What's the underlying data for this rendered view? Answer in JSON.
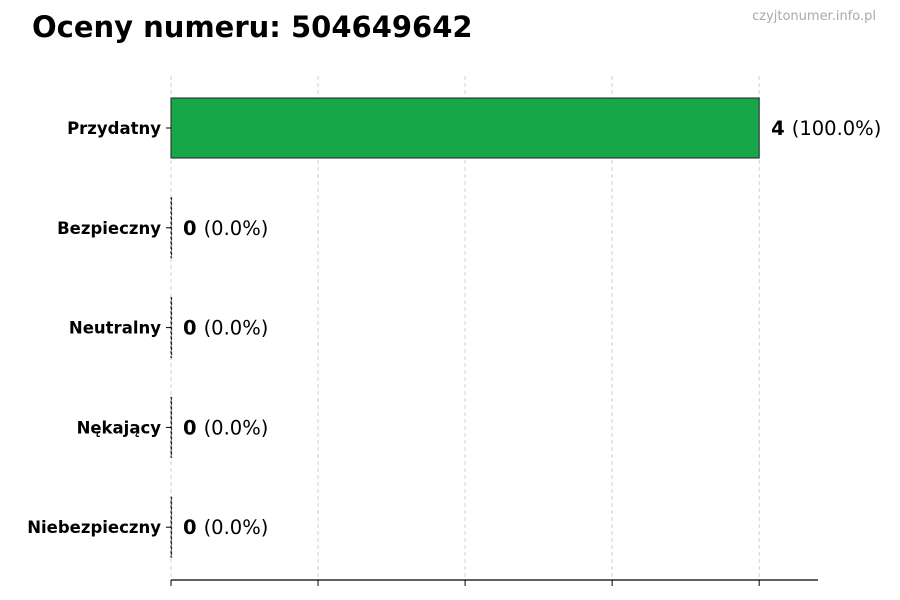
{
  "chart_data": {
    "type": "bar",
    "orientation": "horizontal",
    "title": "Oceny numeru: 504649642",
    "watermark": "czyjtonumer.info.pl",
    "categories": [
      "Przydatny",
      "Bezpieczny",
      "Neutralny",
      "Nękający",
      "Niebezpieczny"
    ],
    "values": [
      4,
      0,
      0,
      0,
      0
    ],
    "percentages": [
      "100.0%",
      "0.0%",
      "0.0%",
      "0.0%",
      "0.0%"
    ],
    "value_labels": [
      {
        "count": "4",
        "pct": "(100.0%)"
      },
      {
        "count": "0",
        "pct": "(0.0%)"
      },
      {
        "count": "0",
        "pct": "(0.0%)"
      },
      {
        "count": "0",
        "pct": "(0.0%)"
      },
      {
        "count": "0",
        "pct": "(0.0%)"
      }
    ],
    "xlim": [
      0,
      4.4
    ],
    "xticks": [
      0,
      1,
      2,
      3,
      4
    ],
    "xtick_labels_shown": false,
    "grid": "vertical dashed",
    "legend": "none",
    "colors": {
      "bar": "#17a64a",
      "edge": "#222222",
      "grid": "#d0d0d0"
    }
  }
}
